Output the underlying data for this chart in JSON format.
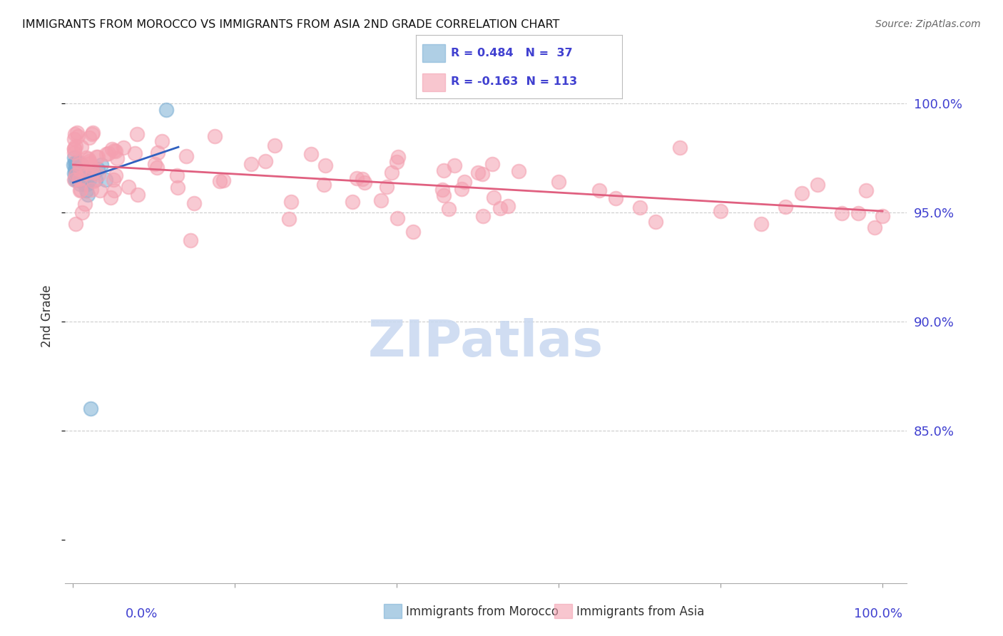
{
  "title": "IMMIGRANTS FROM MOROCCO VS IMMIGRANTS FROM ASIA 2ND GRADE CORRELATION CHART",
  "source": "Source: ZipAtlas.com",
  "ylabel": "2nd Grade",
  "ytick_labels": [
    "100.0%",
    "95.0%",
    "90.0%",
    "85.0%"
  ],
  "ytick_values": [
    1.0,
    0.95,
    0.9,
    0.85
  ],
  "xlim": [
    -0.01,
    1.03
  ],
  "ylim": [
    0.78,
    1.025
  ],
  "watermark": "ZIPatlas",
  "legend_line1": "R = 0.484   N =  37",
  "legend_line2": "R = -0.163  N = 113",
  "color_morocco": "#7bafd4",
  "color_asia": "#f4a0b0",
  "color_line_morocco": "#3060c0",
  "color_line_asia": "#e06080",
  "color_axis_labels": "#4040d0",
  "color_watermark": "#c8d8f0"
}
